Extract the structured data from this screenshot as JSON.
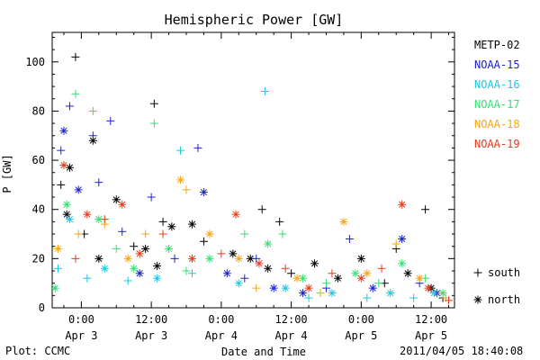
{
  "chart_data": {
    "type": "scatter",
    "title": "Hemispheric Power [GW]",
    "ylabel": "P [GW]",
    "xlabel": "Date and Time",
    "ylim": [
      0,
      112
    ],
    "xlim": [
      "2011-04-02 19:00",
      "2011-04-05 16:00"
    ],
    "y_ticks": [
      0,
      20,
      40,
      60,
      80,
      100
    ],
    "x_ticks": [
      {
        "t": "2011-04-03 00:00",
        "line1": "0:00",
        "line2": "Apr 3"
      },
      {
        "t": "2011-04-03 12:00",
        "line1": "12:00",
        "line2": "Apr 3"
      },
      {
        "t": "2011-04-04 00:00",
        "line1": "0:00",
        "line2": "Apr 4"
      },
      {
        "t": "2011-04-04 12:00",
        "line1": "12:00",
        "line2": "Apr 4"
      },
      {
        "t": "2011-04-05 00:00",
        "line1": "0:00",
        "line2": "Apr 5"
      },
      {
        "t": "2011-04-05 12:00",
        "line1": "12:00",
        "line2": "Apr 5"
      }
    ],
    "grid": false,
    "legend_position": "right",
    "marker_legend": [
      {
        "marker": "+",
        "label": "south"
      },
      {
        "marker": "*",
        "label": "north"
      }
    ],
    "series": [
      {
        "name": "METP-02",
        "color": "#000000",
        "points": [
          {
            "x": "2011-04-02 23:00",
            "y": 102,
            "m": "+"
          },
          {
            "x": "2011-04-02 22:00",
            "y": 57,
            "m": "*"
          },
          {
            "x": "2011-04-02 20:30",
            "y": 50,
            "m": "+"
          },
          {
            "x": "2011-04-02 21:30",
            "y": 38,
            "m": "*"
          },
          {
            "x": "2011-04-03 02:00",
            "y": 68,
            "m": "*"
          },
          {
            "x": "2011-04-03 00:30",
            "y": 30,
            "m": "+"
          },
          {
            "x": "2011-04-03 03:00",
            "y": 20,
            "m": "*"
          },
          {
            "x": "2011-04-03 06:00",
            "y": 44,
            "m": "*"
          },
          {
            "x": "2011-04-03 09:00",
            "y": 25,
            "m": "+"
          },
          {
            "x": "2011-04-03 12:30",
            "y": 83,
            "m": "+"
          },
          {
            "x": "2011-04-03 11:00",
            "y": 24,
            "m": "*"
          },
          {
            "x": "2011-04-03 14:00",
            "y": 35,
            "m": "+"
          },
          {
            "x": "2011-04-03 15:30",
            "y": 33,
            "m": "*"
          },
          {
            "x": "2011-04-03 13:00",
            "y": 17,
            "m": "*"
          },
          {
            "x": "2011-04-03 19:00",
            "y": 34,
            "m": "*"
          },
          {
            "x": "2011-04-03 21:00",
            "y": 27,
            "m": "+"
          },
          {
            "x": "2011-04-04 02:00",
            "y": 22,
            "m": "*"
          },
          {
            "x": "2011-04-04 07:00",
            "y": 40,
            "m": "+"
          },
          {
            "x": "2011-04-04 10:00",
            "y": 35,
            "m": "+"
          },
          {
            "x": "2011-04-04 05:00",
            "y": 20,
            "m": "*"
          },
          {
            "x": "2011-04-04 08:00",
            "y": 16,
            "m": "*"
          },
          {
            "x": "2011-04-04 12:00",
            "y": 14,
            "m": "+"
          },
          {
            "x": "2011-04-04 16:00",
            "y": 18,
            "m": "*"
          },
          {
            "x": "2011-04-04 20:00",
            "y": 12,
            "m": "*"
          },
          {
            "x": "2011-04-05 00:00",
            "y": 20,
            "m": "*"
          },
          {
            "x": "2011-04-05 04:00",
            "y": 10,
            "m": "+"
          },
          {
            "x": "2011-04-05 06:00",
            "y": 24,
            "m": "+"
          },
          {
            "x": "2011-04-05 08:00",
            "y": 14,
            "m": "*"
          },
          {
            "x": "2011-04-05 11:00",
            "y": 40,
            "m": "+"
          },
          {
            "x": "2011-04-05 12:00",
            "y": 8,
            "m": "*"
          },
          {
            "x": "2011-04-05 14:00",
            "y": 4,
            "m": "+"
          }
        ]
      },
      {
        "name": "NOAA-15",
        "color": "#1c22d0",
        "points": [
          {
            "x": "2011-04-02 22:00",
            "y": 82,
            "m": "+"
          },
          {
            "x": "2011-04-02 21:00",
            "y": 72,
            "m": "*"
          },
          {
            "x": "2011-04-02 20:30",
            "y": 64,
            "m": "+"
          },
          {
            "x": "2011-04-03 02:00",
            "y": 70,
            "m": "+"
          },
          {
            "x": "2011-04-03 05:00",
            "y": 76,
            "m": "+"
          },
          {
            "x": "2011-04-02 23:30",
            "y": 48,
            "m": "*"
          },
          {
            "x": "2011-04-03 03:00",
            "y": 51,
            "m": "+"
          },
          {
            "x": "2011-04-03 07:00",
            "y": 31,
            "m": "+"
          },
          {
            "x": "2011-04-03 10:00",
            "y": 14,
            "m": "*"
          },
          {
            "x": "2011-04-03 12:00",
            "y": 45,
            "m": "+"
          },
          {
            "x": "2011-04-03 16:00",
            "y": 20,
            "m": "+"
          },
          {
            "x": "2011-04-03 20:00",
            "y": 65,
            "m": "+"
          },
          {
            "x": "2011-04-03 21:00",
            "y": 47,
            "m": "*"
          },
          {
            "x": "2011-04-04 01:00",
            "y": 14,
            "m": "*"
          },
          {
            "x": "2011-04-04 04:00",
            "y": 12,
            "m": "+"
          },
          {
            "x": "2011-04-04 06:00",
            "y": 20,
            "m": "+"
          },
          {
            "x": "2011-04-04 09:00",
            "y": 8,
            "m": "*"
          },
          {
            "x": "2011-04-04 14:00",
            "y": 6,
            "m": "*"
          },
          {
            "x": "2011-04-04 18:00",
            "y": 8,
            "m": "+"
          },
          {
            "x": "2011-04-04 22:00",
            "y": 28,
            "m": "+"
          },
          {
            "x": "2011-04-05 02:00",
            "y": 8,
            "m": "*"
          },
          {
            "x": "2011-04-05 07:00",
            "y": 28,
            "m": "*"
          },
          {
            "x": "2011-04-05 10:00",
            "y": 10,
            "m": "+"
          },
          {
            "x": "2011-04-05 13:00",
            "y": 6,
            "m": "*"
          }
        ]
      },
      {
        "name": "NOAA-16",
        "color": "#1cc8e0",
        "points": [
          {
            "x": "2011-04-02 20:00",
            "y": 16,
            "m": "+"
          },
          {
            "x": "2011-04-02 22:00",
            "y": 36,
            "m": "*"
          },
          {
            "x": "2011-04-03 01:00",
            "y": 12,
            "m": "+"
          },
          {
            "x": "2011-04-03 04:00",
            "y": 16,
            "m": "*"
          },
          {
            "x": "2011-04-03 08:00",
            "y": 11,
            "m": "+"
          },
          {
            "x": "2011-04-03 13:00",
            "y": 12,
            "m": "*"
          },
          {
            "x": "2011-04-03 17:00",
            "y": 64,
            "m": "+"
          },
          {
            "x": "2011-04-03 19:00",
            "y": 14,
            "m": "+"
          },
          {
            "x": "2011-04-04 03:00",
            "y": 10,
            "m": "*"
          },
          {
            "x": "2011-04-04 07:30",
            "y": 88,
            "m": "+"
          },
          {
            "x": "2011-04-04 11:00",
            "y": 8,
            "m": "*"
          },
          {
            "x": "2011-04-04 15:00",
            "y": 4,
            "m": "+"
          },
          {
            "x": "2011-04-04 19:00",
            "y": 6,
            "m": "*"
          },
          {
            "x": "2011-04-05 01:00",
            "y": 4,
            "m": "+"
          },
          {
            "x": "2011-04-05 05:00",
            "y": 6,
            "m": "*"
          },
          {
            "x": "2011-04-05 09:00",
            "y": 4,
            "m": "+"
          },
          {
            "x": "2011-04-05 12:30",
            "y": 6,
            "m": "*"
          }
        ]
      },
      {
        "name": "NOAA-17",
        "color": "#33e070",
        "points": [
          {
            "x": "2011-04-02 19:30",
            "y": 8,
            "m": "*"
          },
          {
            "x": "2011-04-02 23:00",
            "y": 87,
            "m": "+"
          },
          {
            "x": "2011-04-03 02:00",
            "y": 80,
            "m": "+"
          },
          {
            "x": "2011-04-02 21:30",
            "y": 42,
            "m": "*"
          },
          {
            "x": "2011-04-03 03:00",
            "y": 36,
            "m": "*"
          },
          {
            "x": "2011-04-03 06:00",
            "y": 24,
            "m": "+"
          },
          {
            "x": "2011-04-03 09:00",
            "y": 16,
            "m": "*"
          },
          {
            "x": "2011-04-03 12:30",
            "y": 75,
            "m": "+"
          },
          {
            "x": "2011-04-03 15:00",
            "y": 24,
            "m": "*"
          },
          {
            "x": "2011-04-03 18:00",
            "y": 15,
            "m": "+"
          },
          {
            "x": "2011-04-03 22:00",
            "y": 20,
            "m": "*"
          },
          {
            "x": "2011-04-04 04:00",
            "y": 30,
            "m": "+"
          },
          {
            "x": "2011-04-04 08:00",
            "y": 26,
            "m": "*"
          },
          {
            "x": "2011-04-04 10:30",
            "y": 30,
            "m": "+"
          },
          {
            "x": "2011-04-04 14:00",
            "y": 12,
            "m": "*"
          },
          {
            "x": "2011-04-04 18:00",
            "y": 10,
            "m": "+"
          },
          {
            "x": "2011-04-04 23:00",
            "y": 14,
            "m": "*"
          },
          {
            "x": "2011-04-05 03:00",
            "y": 10,
            "m": "+"
          },
          {
            "x": "2011-04-05 07:00",
            "y": 18,
            "m": "*"
          },
          {
            "x": "2011-04-05 11:00",
            "y": 12,
            "m": "+"
          },
          {
            "x": "2011-04-05 14:00",
            "y": 6,
            "m": "*"
          }
        ]
      },
      {
        "name": "NOAA-18",
        "color": "#f5a418",
        "points": [
          {
            "x": "2011-04-02 20:00",
            "y": 24,
            "m": "*"
          },
          {
            "x": "2011-04-02 23:30",
            "y": 30,
            "m": "+"
          },
          {
            "x": "2011-04-03 04:00",
            "y": 34,
            "m": "+"
          },
          {
            "x": "2011-04-03 08:00",
            "y": 20,
            "m": "*"
          },
          {
            "x": "2011-04-03 11:00",
            "y": 30,
            "m": "+"
          },
          {
            "x": "2011-04-03 17:00",
            "y": 52,
            "m": "*"
          },
          {
            "x": "2011-04-03 18:00",
            "y": 48,
            "m": "+"
          },
          {
            "x": "2011-04-03 22:00",
            "y": 30,
            "m": "*"
          },
          {
            "x": "2011-04-04 03:00",
            "y": 20,
            "m": "*"
          },
          {
            "x": "2011-04-04 06:00",
            "y": 8,
            "m": "+"
          },
          {
            "x": "2011-04-04 13:00",
            "y": 12,
            "m": "*"
          },
          {
            "x": "2011-04-04 17:00",
            "y": 6,
            "m": "+"
          },
          {
            "x": "2011-04-04 21:00",
            "y": 35,
            "m": "*"
          },
          {
            "x": "2011-04-05 01:00",
            "y": 14,
            "m": "*"
          },
          {
            "x": "2011-04-05 06:00",
            "y": 26,
            "m": "+"
          },
          {
            "x": "2011-04-05 10:00",
            "y": 12,
            "m": "*"
          },
          {
            "x": "2011-04-05 14:30",
            "y": 4,
            "m": "+"
          }
        ]
      },
      {
        "name": "NOAA-19",
        "color": "#e83a1a",
        "points": [
          {
            "x": "2011-04-02 21:00",
            "y": 58,
            "m": "*"
          },
          {
            "x": "2011-04-02 23:00",
            "y": 20,
            "m": "+"
          },
          {
            "x": "2011-04-03 01:00",
            "y": 38,
            "m": "*"
          },
          {
            "x": "2011-04-03 04:00",
            "y": 36,
            "m": "+"
          },
          {
            "x": "2011-04-03 07:00",
            "y": 42,
            "m": "*"
          },
          {
            "x": "2011-04-03 10:00",
            "y": 22,
            "m": "*"
          },
          {
            "x": "2011-04-03 14:00",
            "y": 30,
            "m": "+"
          },
          {
            "x": "2011-04-03 19:00",
            "y": 20,
            "m": "*"
          },
          {
            "x": "2011-04-04 00:00",
            "y": 22,
            "m": "+"
          },
          {
            "x": "2011-04-04 02:30",
            "y": 38,
            "m": "*"
          },
          {
            "x": "2011-04-04 06:30",
            "y": 18,
            "m": "*"
          },
          {
            "x": "2011-04-04 11:00",
            "y": 16,
            "m": "+"
          },
          {
            "x": "2011-04-04 15:00",
            "y": 8,
            "m": "*"
          },
          {
            "x": "2011-04-04 19:00",
            "y": 14,
            "m": "+"
          },
          {
            "x": "2011-04-05 00:00",
            "y": 12,
            "m": "*"
          },
          {
            "x": "2011-04-05 03:30",
            "y": 16,
            "m": "+"
          },
          {
            "x": "2011-04-05 07:00",
            "y": 42,
            "m": "*"
          },
          {
            "x": "2011-04-05 11:30",
            "y": 8,
            "m": "*"
          },
          {
            "x": "2011-04-05 15:00",
            "y": 3,
            "m": "+"
          }
        ]
      }
    ]
  },
  "footer": {
    "left": "Plot: CCMC",
    "right": "2011/04/05 18:40:08"
  }
}
